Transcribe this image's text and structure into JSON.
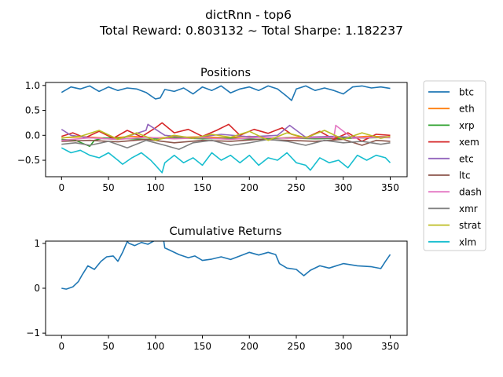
{
  "figure": {
    "suptitle_line1": "dictRnn - top6",
    "suptitle_line2": "Total Reward: 0.803132 ~ Total Sharpe: 1.182237"
  },
  "chart_data": [
    {
      "type": "line",
      "title": "Positions",
      "xlabel": "",
      "ylabel": "",
      "xlim": [
        -17,
        368
      ],
      "ylim": [
        -0.83,
        1.06
      ],
      "xticks": [
        0,
        50,
        100,
        150,
        200,
        250,
        300,
        350
      ],
      "yticks": [
        -0.5,
        0.0,
        0.5,
        1.0
      ],
      "ytick_labels": [
        "−0.5",
        "0.0",
        "0.5",
        "1.0"
      ],
      "grid": false,
      "legend_placement": "outside-right",
      "series": [
        {
          "name": "btc",
          "color": "#1f77b4",
          "x": [
            0,
            10,
            20,
            30,
            40,
            50,
            60,
            70,
            80,
            90,
            100,
            105,
            110,
            120,
            130,
            140,
            150,
            160,
            170,
            180,
            190,
            200,
            210,
            220,
            230,
            240,
            245,
            250,
            260,
            270,
            280,
            290,
            300,
            310,
            320,
            330,
            340,
            350
          ],
          "y": [
            0.86,
            0.97,
            0.93,
            0.99,
            0.88,
            0.97,
            0.9,
            0.95,
            0.93,
            0.86,
            0.73,
            0.75,
            0.92,
            0.88,
            0.95,
            0.83,
            0.97,
            0.9,
            0.99,
            0.85,
            0.93,
            0.97,
            0.9,
            0.99,
            0.93,
            0.78,
            0.7,
            0.93,
            0.99,
            0.9,
            0.95,
            0.9,
            0.83,
            0.97,
            0.99,
            0.95,
            0.97,
            0.94
          ]
        },
        {
          "name": "eth",
          "color": "#ff7f0e",
          "x": [
            0,
            25,
            50,
            75,
            100,
            125,
            150,
            175,
            200,
            225,
            250,
            275,
            300,
            325,
            350
          ],
          "y": [
            -0.05,
            -0.03,
            -0.06,
            -0.02,
            -0.05,
            -0.04,
            -0.03,
            -0.05,
            -0.02,
            -0.06,
            -0.04,
            -0.03,
            -0.05,
            -0.02,
            -0.03
          ]
        },
        {
          "name": "xrp",
          "color": "#2ca02c",
          "x": [
            0,
            15,
            30,
            35,
            45,
            60,
            90,
            120,
            150,
            180,
            210,
            240,
            270,
            300,
            330,
            350
          ],
          "y": [
            -0.08,
            -0.1,
            -0.22,
            -0.1,
            -0.05,
            -0.06,
            -0.08,
            -0.05,
            -0.07,
            -0.06,
            -0.08,
            -0.05,
            -0.07,
            -0.06,
            -0.05,
            -0.04
          ]
        },
        {
          "name": "xem",
          "color": "#d62728",
          "x": [
            0,
            12,
            25,
            40,
            55,
            70,
            85,
            100,
            107,
            120,
            135,
            150,
            165,
            178,
            190,
            205,
            220,
            235,
            245,
            260,
            275,
            290,
            305,
            320,
            335,
            350
          ],
          "y": [
            -0.02,
            0.05,
            -0.05,
            0.08,
            -0.06,
            0.1,
            -0.03,
            0.15,
            0.25,
            0.05,
            0.12,
            -0.02,
            0.1,
            0.22,
            0.0,
            0.12,
            0.04,
            0.15,
            0.02,
            -0.05,
            0.08,
            -0.08,
            0.05,
            -0.12,
            0.02,
            0.0
          ]
        },
        {
          "name": "etc",
          "color": "#9467bd",
          "x": [
            0,
            10,
            30,
            60,
            90,
            92,
            110,
            140,
            170,
            200,
            230,
            243,
            260,
            290,
            320,
            350
          ],
          "y": [
            0.12,
            0.0,
            -0.05,
            -0.08,
            0.1,
            0.22,
            0.0,
            -0.05,
            0.02,
            -0.03,
            0.0,
            0.2,
            -0.04,
            -0.02,
            -0.05,
            -0.03
          ]
        },
        {
          "name": "ltc",
          "color": "#8c564b",
          "x": [
            0,
            30,
            60,
            90,
            120,
            150,
            180,
            210,
            240,
            270,
            300,
            320,
            335,
            350
          ],
          "y": [
            -0.12,
            -0.1,
            -0.13,
            -0.08,
            -0.15,
            -0.1,
            -0.12,
            -0.08,
            -0.1,
            -0.12,
            -0.08,
            -0.2,
            -0.1,
            -0.12
          ]
        },
        {
          "name": "dash",
          "color": "#e377c2",
          "x": [
            0,
            30,
            60,
            90,
            120,
            150,
            180,
            210,
            240,
            270,
            290,
            292,
            310,
            330,
            350
          ],
          "y": [
            -0.1,
            -0.05,
            -0.08,
            -0.04,
            -0.07,
            -0.05,
            -0.08,
            -0.04,
            -0.06,
            -0.05,
            -0.05,
            0.2,
            -0.06,
            -0.04,
            -0.05
          ]
        },
        {
          "name": "xmr",
          "color": "#7f7f7f",
          "x": [
            0,
            15,
            30,
            50,
            70,
            90,
            110,
            125,
            140,
            160,
            180,
            200,
            220,
            240,
            260,
            280,
            300,
            320,
            340,
            350
          ],
          "y": [
            -0.18,
            -0.15,
            -0.2,
            -0.12,
            -0.25,
            -0.1,
            -0.2,
            -0.28,
            -0.15,
            -0.1,
            -0.2,
            -0.15,
            -0.08,
            -0.12,
            -0.2,
            -0.1,
            -0.15,
            -0.12,
            -0.18,
            -0.15
          ]
        },
        {
          "name": "strat",
          "color": "#bcbd22",
          "x": [
            0,
            20,
            40,
            60,
            80,
            100,
            120,
            140,
            160,
            180,
            200,
            220,
            240,
            260,
            280,
            300,
            320,
            340,
            350
          ],
          "y": [
            -0.05,
            -0.02,
            0.1,
            -0.08,
            0.05,
            -0.1,
            0.0,
            -0.06,
            0.02,
            -0.04,
            0.08,
            -0.1,
            0.05,
            -0.05,
            0.1,
            -0.08,
            0.05,
            -0.06,
            -0.02
          ]
        },
        {
          "name": "xlm",
          "color": "#17becf",
          "x": [
            0,
            10,
            20,
            30,
            40,
            50,
            60,
            65,
            75,
            85,
            95,
            100,
            107,
            110,
            120,
            130,
            140,
            150,
            160,
            170,
            180,
            190,
            200,
            210,
            220,
            230,
            240,
            250,
            260,
            265,
            275,
            285,
            295,
            305,
            315,
            325,
            335,
            345,
            350
          ],
          "y": [
            -0.25,
            -0.35,
            -0.3,
            -0.4,
            -0.45,
            -0.35,
            -0.5,
            -0.58,
            -0.45,
            -0.35,
            -0.5,
            -0.6,
            -0.75,
            -0.55,
            -0.4,
            -0.55,
            -0.45,
            -0.6,
            -0.35,
            -0.5,
            -0.4,
            -0.55,
            -0.4,
            -0.6,
            -0.45,
            -0.5,
            -0.35,
            -0.55,
            -0.6,
            -0.7,
            -0.45,
            -0.55,
            -0.5,
            -0.65,
            -0.4,
            -0.5,
            -0.4,
            -0.45,
            -0.55
          ]
        }
      ]
    },
    {
      "type": "line",
      "title": "Cumulative Returns",
      "xlabel": "",
      "ylabel": "",
      "xlim": [
        -17,
        368
      ],
      "ylim": [
        -1.05,
        1.05
      ],
      "xticks": [
        0,
        50,
        100,
        150,
        200,
        250,
        300,
        350
      ],
      "yticks": [
        -1,
        0,
        1
      ],
      "ytick_labels": [
        "−1",
        "0",
        "1"
      ],
      "grid": false,
      "series": [
        {
          "name": "",
          "color": "#1f77b4",
          "x": [
            0,
            5,
            12,
            18,
            22,
            28,
            35,
            42,
            48,
            55,
            60,
            65,
            70,
            72,
            78,
            85,
            92,
            98,
            104,
            107,
            110,
            115,
            125,
            135,
            142,
            150,
            160,
            170,
            180,
            190,
            200,
            210,
            220,
            228,
            232,
            240,
            250,
            258,
            265,
            275,
            285,
            300,
            315,
            330,
            340,
            345,
            350
          ],
          "y": [
            0.0,
            -0.02,
            0.03,
            0.15,
            0.3,
            0.5,
            0.42,
            0.6,
            0.7,
            0.72,
            0.6,
            0.8,
            1.04,
            1.0,
            0.95,
            1.02,
            0.98,
            1.05,
            1.1,
            1.3,
            0.9,
            0.85,
            0.75,
            0.68,
            0.72,
            0.62,
            0.65,
            0.7,
            0.64,
            0.72,
            0.8,
            0.74,
            0.8,
            0.75,
            0.55,
            0.45,
            0.42,
            0.28,
            0.4,
            0.5,
            0.45,
            0.55,
            0.5,
            0.48,
            0.44,
            0.6,
            0.75
          ]
        }
      ]
    }
  ]
}
